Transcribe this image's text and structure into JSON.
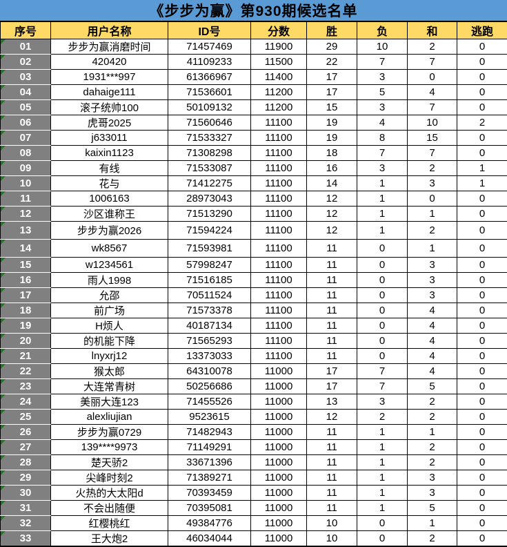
{
  "title": "《步步为赢》第930期候选名单",
  "colors": {
    "title_bg": "#5B9BD5",
    "header_bg": "#FFD966",
    "index_bg": "#808080",
    "index_text": "#FFFFFF",
    "grid_line": "#000000",
    "indicator_green": "#1F7A1F",
    "row_bg": "#FFFFFF",
    "text": "#000000"
  },
  "table": {
    "headers": [
      "序号",
      "用户名称",
      "ID号",
      "分数",
      "胜",
      "负",
      "和",
      "逃跑"
    ],
    "row_keys": [
      "no",
      "name",
      "id",
      "score",
      "win",
      "loss",
      "draw",
      "escape"
    ],
    "rows": [
      {
        "no": "01",
        "name": "步步为赢消磨时间",
        "id": "71457469",
        "score": "11900",
        "win": "29",
        "loss": "10",
        "draw": "2",
        "escape": "0"
      },
      {
        "no": "02",
        "name": "420420",
        "id": "41109233",
        "score": "11500",
        "win": "22",
        "loss": "7",
        "draw": "7",
        "escape": "0"
      },
      {
        "no": "03",
        "name": "1931***997",
        "id": "61366967",
        "score": "11400",
        "win": "17",
        "loss": "3",
        "draw": "0",
        "escape": "0"
      },
      {
        "no": "04",
        "name": "dahaige111",
        "id": "71536601",
        "score": "11200",
        "win": "17",
        "loss": "5",
        "draw": "4",
        "escape": "0"
      },
      {
        "no": "05",
        "name": "滚子统帅100",
        "id": "50109132",
        "score": "11200",
        "win": "15",
        "loss": "3",
        "draw": "7",
        "escape": "0"
      },
      {
        "no": "06",
        "name": "虎哥2025",
        "id": "71560646",
        "score": "11100",
        "win": "19",
        "loss": "4",
        "draw": "10",
        "escape": "2"
      },
      {
        "no": "07",
        "name": "j633011",
        "id": "71533327",
        "score": "11100",
        "win": "19",
        "loss": "8",
        "draw": "15",
        "escape": "0"
      },
      {
        "no": "08",
        "name": "kaixin1123",
        "id": "71308298",
        "score": "11100",
        "win": "18",
        "loss": "7",
        "draw": "7",
        "escape": "0"
      },
      {
        "no": "09",
        "name": "有线",
        "id": "71533087",
        "score": "11100",
        "win": "16",
        "loss": "3",
        "draw": "2",
        "escape": "1"
      },
      {
        "no": "10",
        "name": "花与",
        "id": "71412275",
        "score": "11100",
        "win": "14",
        "loss": "1",
        "draw": "3",
        "escape": "1"
      },
      {
        "no": "11",
        "name": "1006163",
        "id": "28973043",
        "score": "11100",
        "win": "12",
        "loss": "1",
        "draw": "0",
        "escape": "0"
      },
      {
        "no": "12",
        "name": "沙区谁称王",
        "id": "71513290",
        "score": "11100",
        "win": "12",
        "loss": "1",
        "draw": "1",
        "escape": "0"
      },
      {
        "no": "13",
        "name": "步步为赢2026",
        "id": "71594224",
        "score": "11100",
        "win": "12",
        "loss": "1",
        "draw": "2",
        "escape": "0"
      },
      {
        "no": "14",
        "name": "wk8567",
        "id": "71593981",
        "score": "11100",
        "win": "11",
        "loss": "0",
        "draw": "1",
        "escape": "0"
      },
      {
        "no": "15",
        "name": "w1234561",
        "id": "57998247",
        "score": "11100",
        "win": "11",
        "loss": "0",
        "draw": "3",
        "escape": "0"
      },
      {
        "no": "16",
        "name": "雨人1998",
        "id": "71516185",
        "score": "11100",
        "win": "11",
        "loss": "0",
        "draw": "3",
        "escape": "0"
      },
      {
        "no": "17",
        "name": "允邵",
        "id": "70511524",
        "score": "11100",
        "win": "11",
        "loss": "0",
        "draw": "3",
        "escape": "0"
      },
      {
        "no": "18",
        "name": "前广场",
        "id": "71573378",
        "score": "11100",
        "win": "11",
        "loss": "0",
        "draw": "4",
        "escape": "0"
      },
      {
        "no": "19",
        "name": "H烦人",
        "id": "40187134",
        "score": "11100",
        "win": "11",
        "loss": "0",
        "draw": "4",
        "escape": "0"
      },
      {
        "no": "20",
        "name": "的机能下降",
        "id": "71565293",
        "score": "11100",
        "win": "11",
        "loss": "0",
        "draw": "4",
        "escape": "0"
      },
      {
        "no": "21",
        "name": "lnyxrj12",
        "id": "13373033",
        "score": "11100",
        "win": "11",
        "loss": "0",
        "draw": "4",
        "escape": "0"
      },
      {
        "no": "22",
        "name": "猴太郎",
        "id": "64310078",
        "score": "11000",
        "win": "17",
        "loss": "7",
        "draw": "4",
        "escape": "0"
      },
      {
        "no": "23",
        "name": "大连常青树",
        "id": "50256686",
        "score": "11000",
        "win": "17",
        "loss": "7",
        "draw": "5",
        "escape": "0"
      },
      {
        "no": "24",
        "name": "美丽大连123",
        "id": "71455526",
        "score": "11000",
        "win": "13",
        "loss": "3",
        "draw": "2",
        "escape": "0"
      },
      {
        "no": "25",
        "name": "alexliujian",
        "id": "9523615",
        "score": "11000",
        "win": "12",
        "loss": "2",
        "draw": "2",
        "escape": "0"
      },
      {
        "no": "26",
        "name": "步步为赢0729",
        "id": "71482943",
        "score": "11000",
        "win": "11",
        "loss": "1",
        "draw": "1",
        "escape": "0"
      },
      {
        "no": "27",
        "name": "139****9973",
        "id": "71149291",
        "score": "11000",
        "win": "11",
        "loss": "1",
        "draw": "2",
        "escape": "0"
      },
      {
        "no": "28",
        "name": "楚天骄2",
        "id": "33671396",
        "score": "11000",
        "win": "11",
        "loss": "1",
        "draw": "2",
        "escape": "0"
      },
      {
        "no": "29",
        "name": "尖峰时刻2",
        "id": "71389271",
        "score": "11000",
        "win": "11",
        "loss": "1",
        "draw": "3",
        "escape": "0"
      },
      {
        "no": "30",
        "name": "火热的大太阳d",
        "id": "70393459",
        "score": "11000",
        "win": "11",
        "loss": "1",
        "draw": "3",
        "escape": "0"
      },
      {
        "no": "31",
        "name": "不会出随便",
        "id": "70395081",
        "score": "11000",
        "win": "11",
        "loss": "1",
        "draw": "5",
        "escape": "0"
      },
      {
        "no": "32",
        "name": "红樱桃红",
        "id": "49384776",
        "score": "11000",
        "win": "10",
        "loss": "0",
        "draw": "1",
        "escape": "0"
      },
      {
        "no": "33",
        "name": "王大炮2",
        "id": "46034044",
        "score": "11000",
        "win": "10",
        "loss": "0",
        "draw": "2",
        "escape": "0"
      }
    ]
  }
}
